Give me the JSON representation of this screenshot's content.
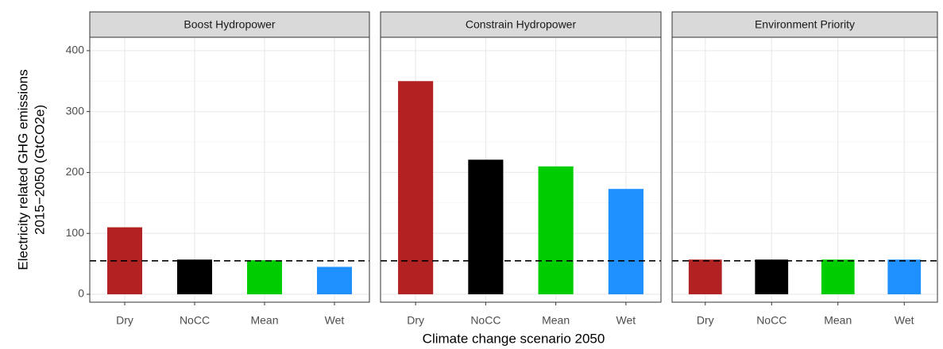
{
  "chart_data": [
    {
      "type": "bar",
      "title": "Boost Hydropower",
      "ylabel": [
        "Electricity related GHG emissions",
        "2015−2050 (GtCO2e)"
      ],
      "categories": [
        "Dry",
        "NoCC",
        "Mean",
        "Wet"
      ],
      "values": [
        110,
        57,
        56,
        45
      ],
      "colors": [
        "#b22222",
        "#000000",
        "#00cd00",
        "#1e90ff"
      ],
      "ylim": [
        -13,
        422
      ],
      "yticks": [
        0,
        100,
        200,
        300,
        400
      ],
      "minor_yticks": [
        50,
        150,
        250,
        350
      ],
      "hline": 55,
      "grid": true
    },
    {
      "type": "bar",
      "title": "Constrain Hydropower",
      "xlabel": "Climate change scenario 2050",
      "categories": [
        "Dry",
        "NoCC",
        "Mean",
        "Wet"
      ],
      "values": [
        350,
        221,
        210,
        173
      ],
      "colors": [
        "#b22222",
        "#000000",
        "#00cd00",
        "#1e90ff"
      ],
      "ylim": [
        -13,
        422
      ],
      "yticks": [
        0,
        100,
        200,
        300,
        400
      ],
      "minor_yticks": [
        50,
        150,
        250,
        350
      ],
      "hline": 55,
      "grid": true
    },
    {
      "type": "bar",
      "title": "Environment Priority",
      "categories": [
        "Dry",
        "NoCC",
        "Mean",
        "Wet"
      ],
      "values": [
        57,
        57,
        57,
        57
      ],
      "colors": [
        "#b22222",
        "#000000",
        "#00cd00",
        "#1e90ff"
      ],
      "ylim": [
        -13,
        422
      ],
      "yticks": [
        0,
        100,
        200,
        300,
        400
      ],
      "minor_yticks": [
        50,
        150,
        250,
        350
      ],
      "hline": 55,
      "grid": true
    }
  ]
}
